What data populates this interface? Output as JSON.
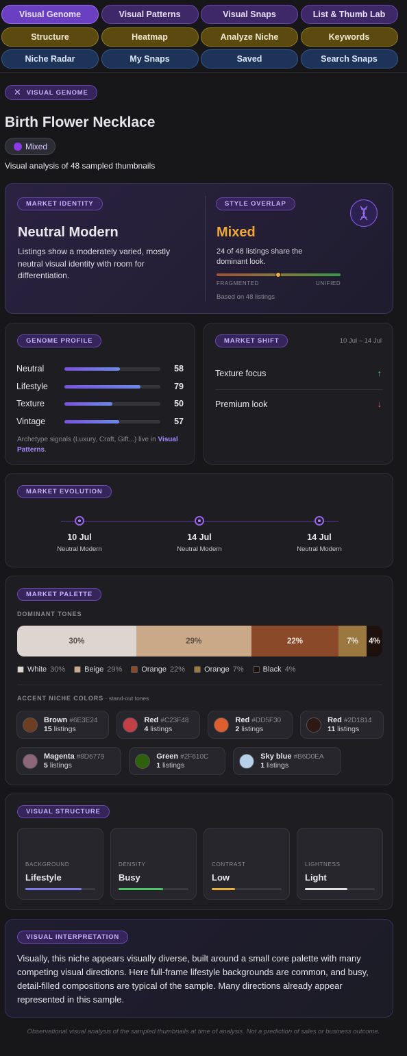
{
  "nav": [
    [
      "Visual Genome",
      "Visual Patterns",
      "Visual Snaps",
      "List & Thumb Lab"
    ],
    [
      "Structure",
      "Heatmap",
      "Analyze Niche",
      "Keywords"
    ],
    [
      "Niche Radar",
      "My Snaps",
      "Saved",
      "Search Snaps"
    ]
  ],
  "header": {
    "badge": "VISUAL GENOME",
    "title": "Birth Flower Necklace",
    "tag": "Mixed",
    "subtitle": "Visual analysis of 48 sampled thumbnails"
  },
  "identity": {
    "label": "MARKET IDENTITY",
    "title": "Neutral Modern",
    "text": "Listings show a moderately varied, mostly neutral visual identity with room for differentiation."
  },
  "overlap": {
    "label": "STYLE OVERLAP",
    "title": "Mixed",
    "text": "24 of 48 listings share the dominant look.",
    "left": "FRAGMENTED",
    "right": "UNIFIED",
    "note": "Based on 48 listings"
  },
  "genome": {
    "label": "GENOME PROFILE",
    "rows": [
      {
        "name": "Neutral",
        "value": 58
      },
      {
        "name": "Lifestyle",
        "value": 79
      },
      {
        "name": "Texture",
        "value": 50
      },
      {
        "name": "Vintage",
        "value": 57
      }
    ],
    "note": "Archetype signals (Luxury, Craft, Gift...) live in",
    "link": "Visual Patterns",
    "note_end": "."
  },
  "shift": {
    "label": "MARKET SHIFT",
    "dates": "10 Jul – 14 Jul",
    "items": [
      {
        "name": "Texture focus",
        "trend": "up"
      },
      {
        "name": "Premium look",
        "trend": "down"
      }
    ]
  },
  "evolution": {
    "label": "MARKET EVOLUTION",
    "points": [
      {
        "date": "10 Jul",
        "label": "Neutral Modern"
      },
      {
        "date": "14 Jul",
        "label": "Neutral Modern"
      },
      {
        "date": "14 Jul",
        "label": "Neutral Modern"
      }
    ]
  },
  "palette": {
    "label": "MARKET PALETTE",
    "dominant_label": "DOMINANT TONES",
    "tones": [
      {
        "name": "White",
        "value": 30,
        "label": "30%",
        "color": "#ddd5cf"
      },
      {
        "name": "Beige",
        "value": 29,
        "label": "29%",
        "color": "#c9a987"
      },
      {
        "name": "Orange",
        "value": 22,
        "label": "22%",
        "color": "#8a4a2a"
      },
      {
        "name": "Orange",
        "value": 7,
        "label": "7%",
        "color": "#9a7840"
      },
      {
        "name": "Black",
        "value": 4,
        "label": "4%",
        "color": "#1e100d"
      }
    ],
    "accent_label": "ACCENT NICHE COLORS",
    "accent_sub": "· stand-out tones",
    "accents": [
      {
        "name": "Brown",
        "hex": "#6E3E24",
        "count": 15,
        "unit": "listings"
      },
      {
        "name": "Red",
        "hex": "#C23F48",
        "count": 4,
        "unit": "listings"
      },
      {
        "name": "Red",
        "hex": "#DD5F30",
        "count": 2,
        "unit": "listings"
      },
      {
        "name": "Red",
        "hex": "#2D1814",
        "count": 11,
        "unit": "listings"
      },
      {
        "name": "Magenta",
        "hex": "#8D6779",
        "count": 5,
        "unit": "listings"
      },
      {
        "name": "Green",
        "hex": "#2F610C",
        "count": 1,
        "unit": "listings"
      },
      {
        "name": "Sky blue",
        "hex": "#B6D0EA",
        "count": 1,
        "unit": "listings"
      }
    ]
  },
  "structure": {
    "label": "VISUAL STRUCTURE",
    "items": [
      {
        "label": "BACKGROUND",
        "value": "Lifestyle",
        "level": 80,
        "color": "#7a7ae0"
      },
      {
        "label": "DENSITY",
        "value": "Busy",
        "level": 64,
        "color": "#4fc46a"
      },
      {
        "label": "CONTRAST",
        "value": "Low",
        "level": 33,
        "color": "#e8b040"
      },
      {
        "label": "LIGHTNESS",
        "value": "Light",
        "level": 61,
        "color": "#e0e0e0"
      }
    ]
  },
  "interpretation": {
    "label": "VISUAL INTERPRETATION",
    "text": "Visually, this niche appears visually diverse, built around a small core palette with many competing visual directions. Here full-frame lifestyle backgrounds are common, and busy, detail-filled compositions are typical of the sample. Many directions already appear represented in this sample."
  },
  "footer": "Observational visual analysis of the sampled thumbnails at time of analysis. Not a prediction of sales or business outcome."
}
